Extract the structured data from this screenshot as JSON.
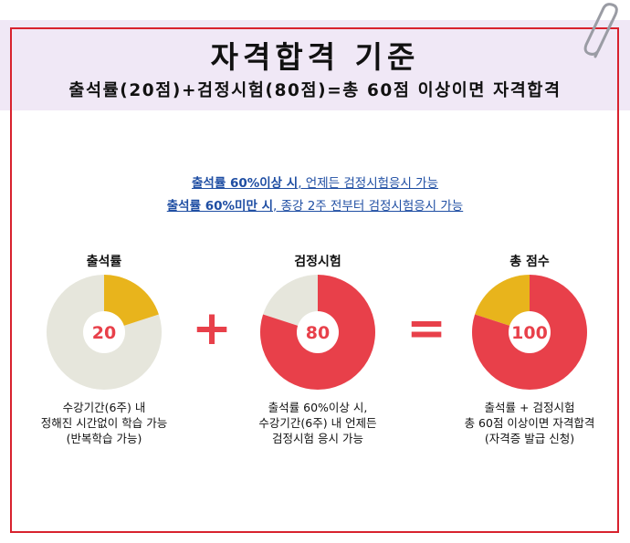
{
  "header": {
    "title": "자격합격 기준",
    "subtitle": "출석률(20점)+검정시험(80점)=총 60점 이상이면 자격합격"
  },
  "notices": [
    {
      "bold": "출석률 60%이상 시",
      "rest": ", 언제든 검정시험응시 가능"
    },
    {
      "bold": "출석률 60%미만 시",
      "rest": ", 종강 2주 전부터 검정시험응시 가능"
    }
  ],
  "columns": [
    {
      "title": "출석률",
      "value": "20",
      "fill_fraction": 0.2,
      "fill_color": "#e8b41c",
      "rest_color": "#e6e6dc",
      "desc": [
        "수강기간(6주) 내",
        "정해진 시간없이 학습 가능",
        "(반복학습 가능)"
      ]
    },
    {
      "title": "검정시험",
      "value": "80",
      "fill_fraction": 0.8,
      "fill_color": "#e8404a",
      "rest_color": "#e6e6dc",
      "desc": [
        "출석률 60%이상 시,",
        "수강기간(6주) 내 언제든",
        "검정시험 응시 가능"
      ]
    },
    {
      "title": "총 점수",
      "value": "100",
      "fill_fraction": 0.8,
      "fill_color": "#e8404a",
      "rest_color": "#e8b41c",
      "desc": [
        "출석률 + 검정시험",
        "총 60점 이상이면 자격합격",
        "(자격증 발급 신청)"
      ]
    }
  ],
  "operators": {
    "plus": "+",
    "equals": "="
  },
  "colors": {
    "accent_red": "#d8222e",
    "header_bg": "#f0e8f6",
    "notice_blue": "#1f4ea3"
  },
  "icons": {
    "clip": "paperclip-icon"
  }
}
